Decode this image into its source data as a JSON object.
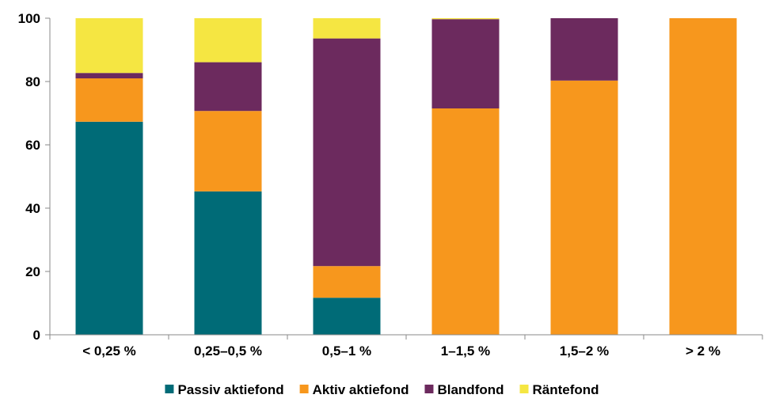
{
  "chart_data": {
    "type": "bar",
    "stacked": true,
    "categories": [
      "< 0,25 %",
      "0,25–0,5 %",
      "0,5–1 %",
      "1–1,5 %",
      "1,5–2 %",
      "> 2 %"
    ],
    "series": [
      {
        "name": "Passiv aktiefond",
        "color": "#006B77",
        "values": [
          67.3,
          45.3,
          11.7,
          0,
          0,
          0
        ]
      },
      {
        "name": "Aktiv aktiefond",
        "color": "#F7971D",
        "values": [
          13.7,
          25.4,
          10.0,
          71.5,
          80.3,
          100
        ]
      },
      {
        "name": "Blandfond",
        "color": "#6C2A5E",
        "values": [
          1.7,
          15.4,
          71.9,
          28.2,
          19.7,
          0
        ]
      },
      {
        "name": "Räntefond",
        "color": "#F5E642",
        "values": [
          17.3,
          13.9,
          6.4,
          0.3,
          0,
          0
        ]
      }
    ],
    "ylim": [
      0,
      100
    ],
    "yticks": [
      "0",
      "20",
      "40",
      "60",
      "80",
      "100"
    ],
    "grid": false,
    "legend": "bottom"
  }
}
